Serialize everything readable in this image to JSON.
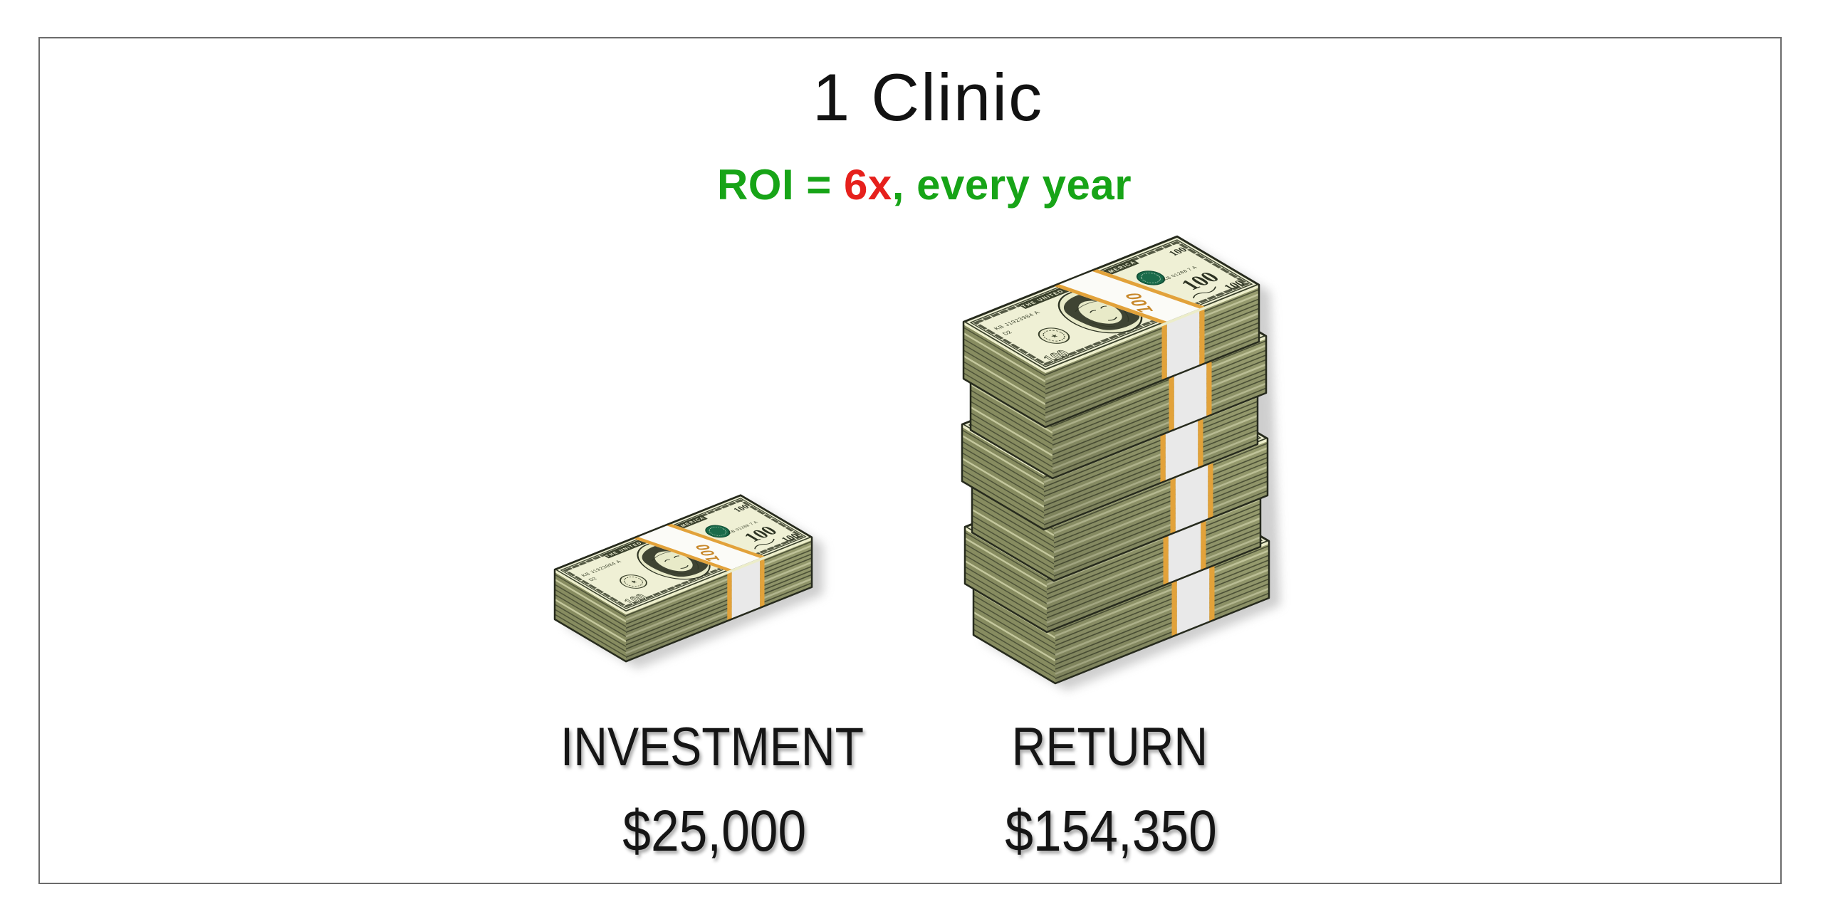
{
  "title": "1 Clinic",
  "roi": {
    "prefix": "ROI = ",
    "multiple": "6x",
    "suffix": ", every year"
  },
  "columns": [
    {
      "label": "INVESTMENT",
      "amount": "$25,000"
    },
    {
      "label": "RETURN",
      "amount": "$154,350"
    }
  ],
  "chart_data": {
    "type": "bar",
    "categories": [
      "INVESTMENT",
      "RETURN"
    ],
    "values": [
      25000,
      154350
    ],
    "value_labels": [
      "$25,000",
      "$154,350"
    ],
    "title": "1 Clinic",
    "subtitle": "ROI = 6x, every year",
    "roi_multiple": "6x",
    "pictogram_unit": "money-stack-icon",
    "pictogram_counts": [
      1,
      6
    ]
  },
  "money": {
    "band_label": "100",
    "denomination": "100",
    "serial_left": "KB J1923984 A",
    "plate": "D2",
    "serial_right": "KB 01288 7 A",
    "top_text": "THE UNITED STATES OF AMERICA"
  },
  "colors": {
    "green": "#17a417",
    "red": "#e6201c",
    "text": "#151515",
    "frame_border": "#6b6b6b"
  },
  "palette": {
    "bill_bg": "#eff0d5",
    "ink": "#39402b",
    "ink_dark": "#2c3222",
    "seal_green": "#1a6b4a",
    "side_front": "#999e70",
    "side_left": "#878c60",
    "stripe_dark": "#4e5338",
    "stripe_light": "#c5c89e",
    "cream_edge": "#ecedca",
    "band_side": "#e9e9e9",
    "gold": "#e2a23a",
    "gold_dark": "#c8882a",
    "outline": "#262a1d",
    "shadow": "#9e9e9e"
  }
}
